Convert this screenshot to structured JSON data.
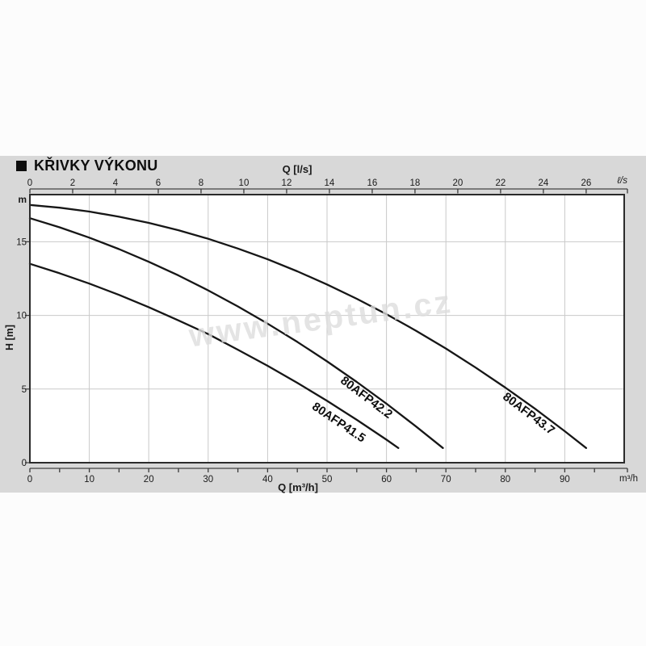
{
  "title": "KŘIVKY VÝKONU",
  "watermark": "www.neptun.cz",
  "colors": {
    "band_background": "#d8d8d8",
    "plot_background": "#ffffff",
    "frame": "#2b2b2b",
    "grid": "#c9c9c9",
    "axis_line": "#7a7a7a",
    "tick": "#3a3a3a",
    "text": "#1a1a1a",
    "curve": "#161616",
    "watermark": "#dcdcdc"
  },
  "chart_data": {
    "type": "line",
    "title": "KŘIVKY VÝKONU",
    "x_axis_top": {
      "label": "Q [l/s]",
      "unit_right": "ℓ/s",
      "ticks": [
        0,
        2,
        4,
        6,
        8,
        10,
        12,
        14,
        16,
        18,
        20,
        22,
        24,
        26
      ],
      "lps_to_m3h": 3.6
    },
    "x_axis_bottom": {
      "label": "Q [m³/h]",
      "unit_right": "m³/h",
      "major_ticks": [
        0,
        10,
        20,
        30,
        40,
        50,
        60,
        70,
        80,
        90
      ],
      "minor_tick_step": 5,
      "range": [
        0,
        100
      ]
    },
    "y_axis": {
      "label": "H [m]",
      "unit_top": "m",
      "ticks": [
        0,
        5,
        10,
        15
      ],
      "range": [
        0,
        18.2
      ]
    },
    "grid": {
      "vertical_every_m3h": 10,
      "horizontal_at": [
        5,
        10,
        15
      ]
    },
    "series": [
      {
        "name": "80AFP41.5",
        "points_q_h": [
          [
            0,
            13.5
          ],
          [
            5,
            12.86
          ],
          [
            10,
            12.16
          ],
          [
            15,
            11.39
          ],
          [
            20,
            10.56
          ],
          [
            25,
            9.66
          ],
          [
            30,
            8.73
          ],
          [
            35,
            7.67
          ],
          [
            40,
            6.58
          ],
          [
            45,
            5.42
          ],
          [
            50,
            4.2
          ],
          [
            55,
            2.91
          ],
          [
            60,
            1.56
          ],
          [
            62,
            1.0
          ]
        ]
      },
      {
        "name": "80AFP42.2",
        "points_q_h": [
          [
            0,
            16.6
          ],
          [
            5,
            15.98
          ],
          [
            10,
            15.28
          ],
          [
            15,
            14.5
          ],
          [
            20,
            13.64
          ],
          [
            25,
            12.71
          ],
          [
            30,
            11.7
          ],
          [
            35,
            10.61
          ],
          [
            40,
            9.44
          ],
          [
            45,
            8.2
          ],
          [
            50,
            6.88
          ],
          [
            55,
            5.48
          ],
          [
            60,
            4.01
          ],
          [
            65,
            2.45
          ],
          [
            69.5,
            1.0
          ]
        ]
      },
      {
        "name": "80AFP43.7",
        "points_q_h": [
          [
            0,
            17.5
          ],
          [
            5,
            17.31
          ],
          [
            10,
            17.05
          ],
          [
            15,
            16.7
          ],
          [
            20,
            16.28
          ],
          [
            25,
            15.78
          ],
          [
            30,
            15.2
          ],
          [
            35,
            14.54
          ],
          [
            40,
            13.81
          ],
          [
            45,
            12.99
          ],
          [
            50,
            12.1
          ],
          [
            55,
            11.13
          ],
          [
            60,
            10.08
          ],
          [
            65,
            8.95
          ],
          [
            70,
            7.75
          ],
          [
            75,
            6.46
          ],
          [
            80,
            5.1
          ],
          [
            85,
            3.66
          ],
          [
            90,
            2.14
          ],
          [
            93.6,
            1.0
          ]
        ]
      }
    ]
  }
}
